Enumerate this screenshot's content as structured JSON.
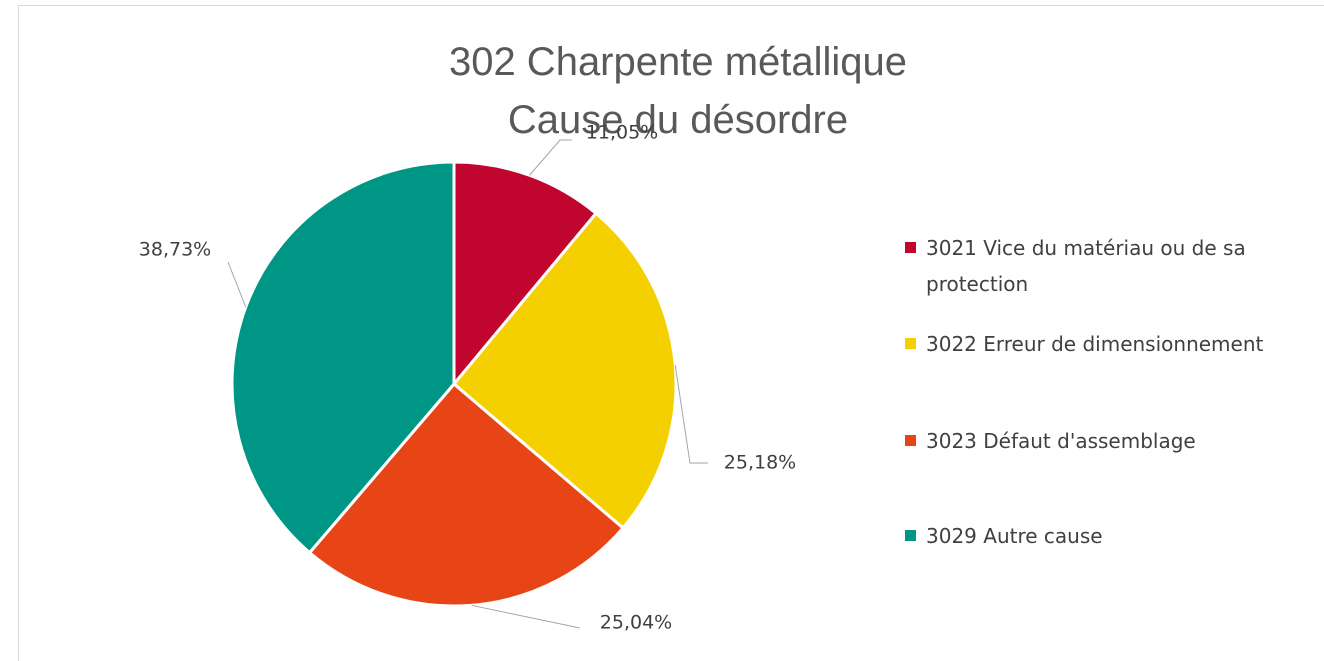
{
  "chart_data": {
    "type": "pie",
    "title": "302 Charpente métallique",
    "subtitle": "Cause du désordre",
    "categories": [
      "3021 Vice du matériau ou de sa protection",
      "3022 Erreur de dimensionnement",
      "3023 Défaut d'assemblage",
      "3029 Autre cause"
    ],
    "values": [
      11.05,
      25.18,
      25.04,
      38.73
    ],
    "value_labels": [
      "11,05%",
      "25,18%",
      "25,04%",
      "38,73%"
    ],
    "colors": [
      "#c0062f",
      "#f5d000",
      "#e84516",
      "#009685"
    ],
    "legend": "right"
  }
}
